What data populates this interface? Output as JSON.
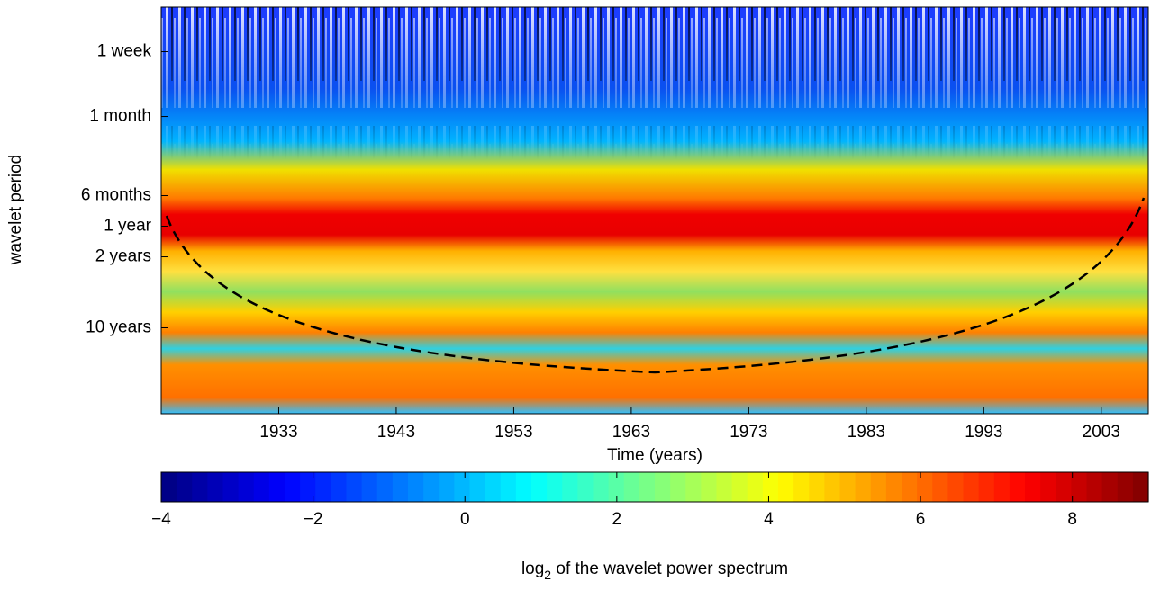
{
  "chart_data": {
    "type": "heatmap",
    "x_label": "Time (years)",
    "y_label": "wavelet period",
    "xlim": [
      1923,
      2007
    ],
    "xticks": [
      1933,
      1943,
      1953,
      1963,
      1973,
      1983,
      1993,
      2003
    ],
    "y_log": true,
    "ylim": [
      0.007,
      70
    ],
    "yticks": [
      {
        "value": 0.0192,
        "label": "1 week"
      },
      {
        "value": 0.0833,
        "label": "1 month"
      },
      {
        "value": 0.5,
        "label": "6 months"
      },
      {
        "value": 1,
        "label": "1 year"
      },
      {
        "value": 2,
        "label": "2 years"
      },
      {
        "value": 10,
        "label": "10 years"
      }
    ],
    "colorbar": {
      "label": [
        "log",
        "2",
        " of the wavelet power spectrum"
      ],
      "lim": [
        -4,
        9
      ],
      "ticks": [
        {
          "value": -4,
          "label": "−4"
        },
        {
          "value": -2,
          "label": "−2"
        },
        0,
        2,
        4,
        6,
        8
      ]
    }
  }
}
